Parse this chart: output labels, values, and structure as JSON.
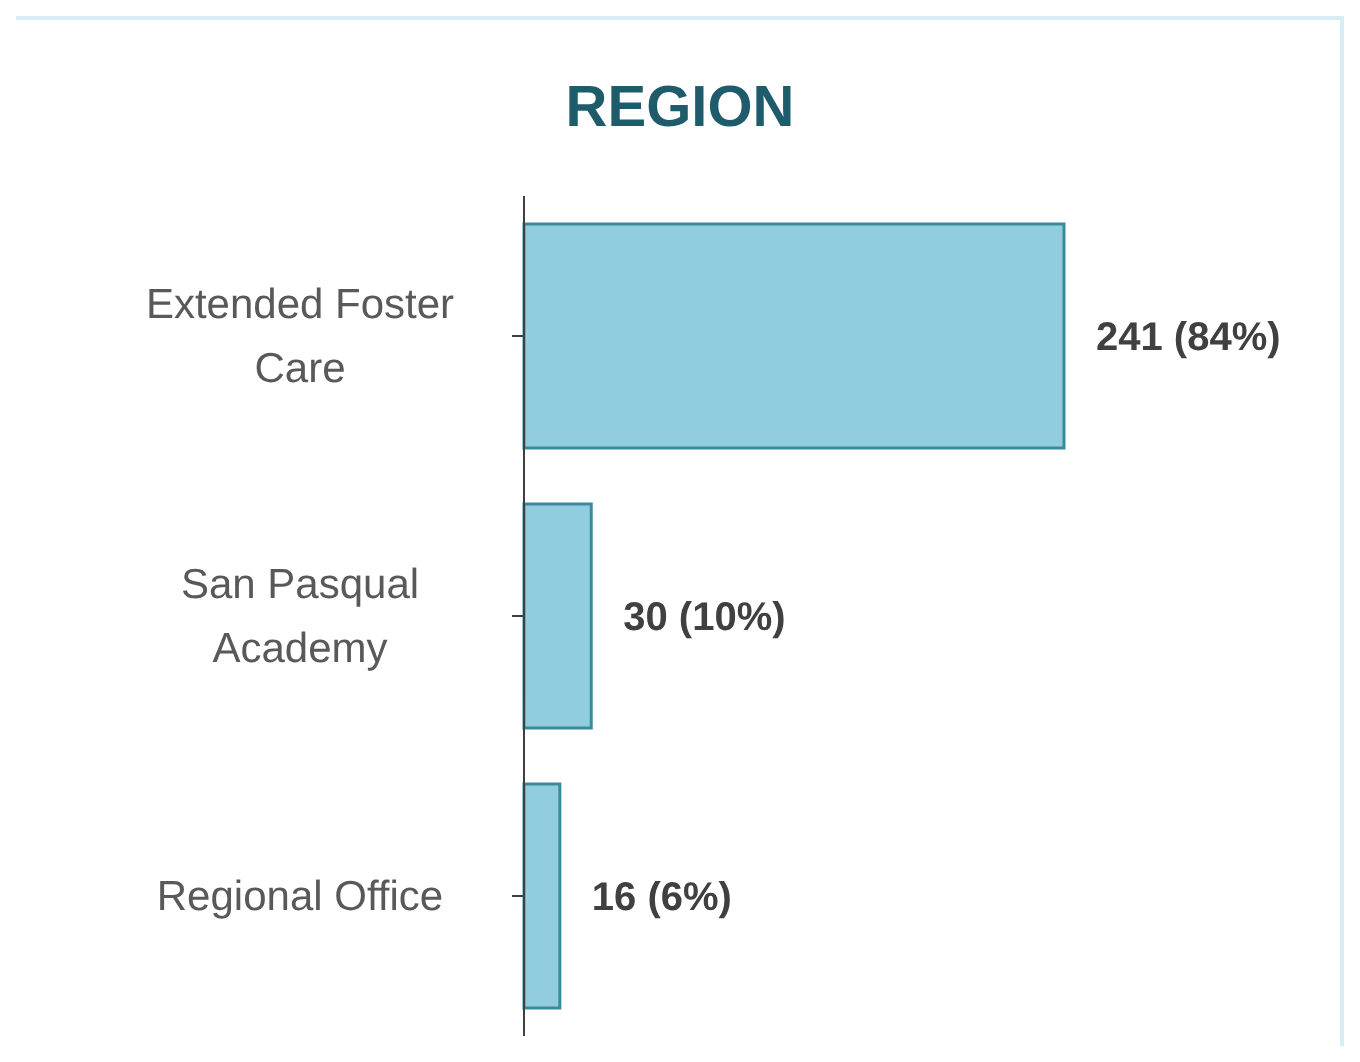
{
  "chart_data": {
    "type": "bar",
    "orientation": "horizontal",
    "title": "REGION",
    "categories": [
      "Extended Foster Care",
      "San Pasqual Academy",
      "Regional Office"
    ],
    "values": [
      241,
      30,
      16
    ],
    "value_labels": [
      "241 (84%)",
      "30 (10%)",
      "16 (6%)"
    ],
    "color": "#92cddf"
  }
}
